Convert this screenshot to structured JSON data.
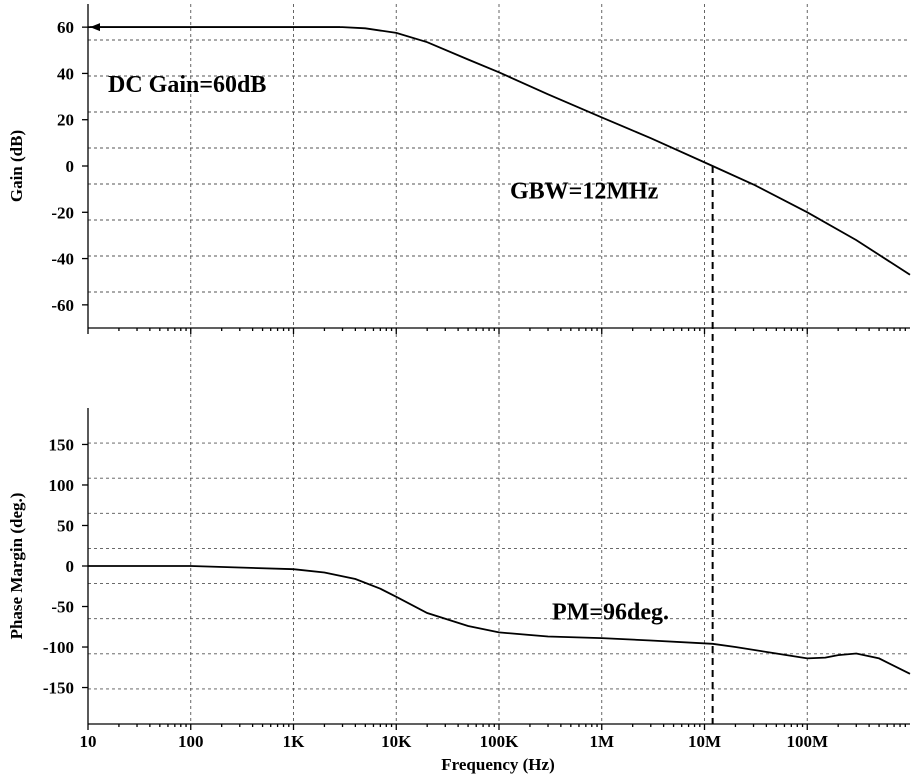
{
  "chart_data": [
    {
      "type": "line",
      "panel": "gain",
      "ylabel": "Gain (dB)",
      "xscale": "log",
      "xlim": [
        10,
        1000000000
      ],
      "ylim": [
        -70,
        70
      ],
      "yticks": [
        60,
        40,
        20,
        0,
        -20,
        -40,
        -60
      ],
      "grid": true,
      "annotation": "DC Gain=60dB",
      "marker_annotation": "GBW=12MHz",
      "series": [
        {
          "x": [
            10,
            100,
            1000,
            3000,
            5000,
            10000,
            20000,
            50000,
            100000,
            300000,
            1000000,
            3000000,
            12000000,
            30000000,
            100000000,
            300000000,
            1000000000
          ],
          "values": [
            60,
            60,
            60,
            60,
            59.5,
            57.5,
            53.5,
            46,
            40.5,
            31,
            21,
            12,
            0,
            -8,
            -20,
            -32,
            -47
          ]
        }
      ]
    },
    {
      "type": "line",
      "panel": "phase",
      "xlabel": "Frequency (Hz)",
      "ylabel": "Phase Margin (deg.)",
      "xscale": "log",
      "xlim": [
        10,
        1000000000
      ],
      "ylim": [
        -195,
        195
      ],
      "yticks": [
        150,
        100,
        50,
        0,
        -50,
        -100,
        -150
      ],
      "grid": true,
      "annotation": "PM=96deg.",
      "series": [
        {
          "x": [
            10,
            100,
            1000,
            2000,
            4000,
            7000,
            10000,
            20000,
            50000,
            100000,
            300000,
            1000000,
            3000000,
            12000000,
            20000000,
            50000000,
            100000000,
            150000000,
            200000000,
            300000000,
            500000000,
            1000000000
          ],
          "values": [
            0,
            0,
            -4,
            -8,
            -16,
            -28,
            -38,
            -58,
            -74,
            -82,
            -87,
            -89,
            -92,
            -96,
            -100,
            -108,
            -114,
            -113,
            -110,
            -108,
            -114,
            -133
          ]
        }
      ]
    }
  ],
  "x_tick_labels": [
    "10",
    "100",
    "1K",
    "10K",
    "100K",
    "1M",
    "10M",
    "100M"
  ],
  "marker_frequency": 12000000
}
